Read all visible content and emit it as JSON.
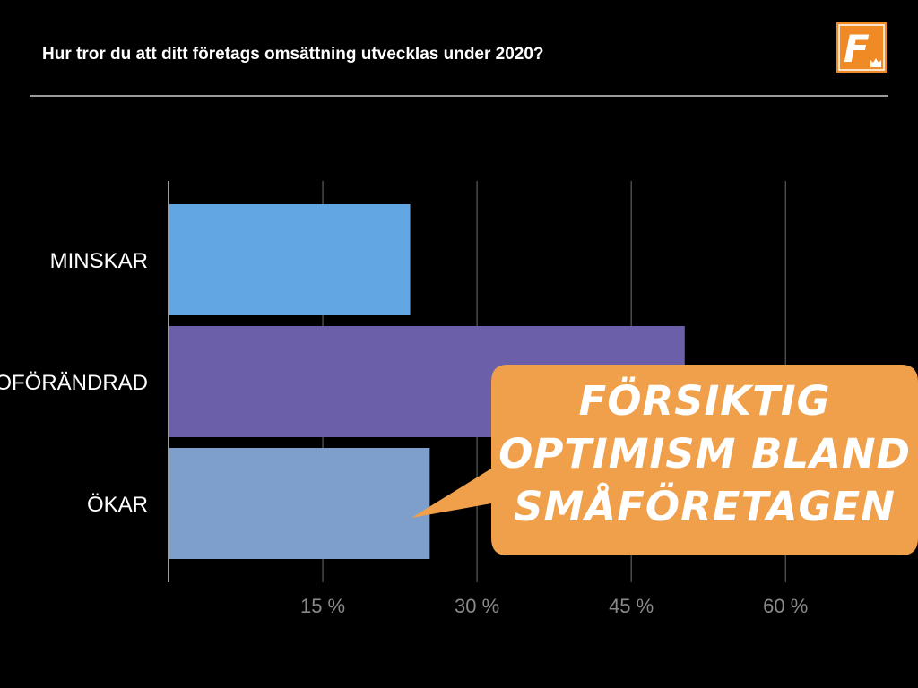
{
  "title": "Hur tror du att ditt företags omsättning utvecklas under 2020?",
  "logo": {
    "letter": "F",
    "icon": "crown-icon",
    "bg": "#F08A24"
  },
  "callout": {
    "lines": [
      "FÖRSIKTIG",
      "OPTIMISM BLAND",
      "SMÅFÖRETAGEN"
    ],
    "color": "#F0A04B"
  },
  "chart_data": {
    "type": "bar",
    "orientation": "horizontal",
    "categories": [
      "MINSKAR",
      "OFÖRÄNDRAD",
      "ÖKAR"
    ],
    "values": [
      23.5,
      50.2,
      25.4
    ],
    "colors": [
      "#62A7E4",
      "#6A5FA8",
      "#7E9FCB"
    ],
    "xlim": [
      0,
      70
    ],
    "ticks": [
      15,
      30,
      45,
      60
    ],
    "tick_labels": [
      "15 %",
      "30 %",
      "45 %",
      "60 %"
    ],
    "grid": true,
    "title": "",
    "xlabel": "",
    "ylabel": ""
  }
}
